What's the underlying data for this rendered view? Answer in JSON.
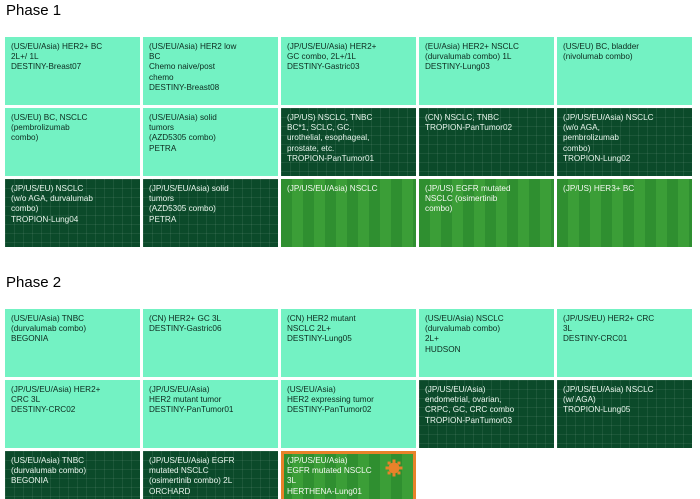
{
  "phase1": {
    "title": "Phase 1",
    "cells": [
      {
        "text": "(US/EU/Asia) HER2+ BC\n2L+/ 1L\nDESTINY-Breast07",
        "style": "light"
      },
      {
        "text": "(US/EU/Asia) HER2 low\nBC\nChemo naive/post\nchemo\nDESTINY-Breast08",
        "style": "light"
      },
      {
        "text": "(JP/US/EU/Asia) HER2+\nGC combo, 2L+/1L\nDESTINY-Gastric03",
        "style": "light"
      },
      {
        "text": "(EU/Asia) HER2+ NSCLC\n(durvalumab combo) 1L\nDESTINY-Lung03",
        "style": "light"
      },
      {
        "text": "(US/EU) BC, bladder\n(nivolumab combo)",
        "style": "light"
      },
      {
        "text": "(US/EU) BC, NSCLC\n(pembrolizumab\ncombo)",
        "style": "light"
      },
      {
        "text": "(US/EU/Asia) solid\ntumors\n(AZD5305 combo)\nPETRA",
        "style": "light"
      },
      {
        "text": "(JP/US) NSCLC, TNBC\nBC*1, SCLC, GC,\nurothelial, esophageal,\nprostate, etc.\nTROPION-PanTumor01",
        "style": "dark"
      },
      {
        "text": "(CN) NSCLC, TNBC\nTROPION-PanTumor02",
        "style": "dark"
      },
      {
        "text": "(JP/US/EU/Asia) NSCLC\n(w/o AGA,\npembrolizumab\ncombo)\nTROPION-Lung02",
        "style": "dark"
      },
      {
        "text": "(JP/US/EU) NSCLC\n(w/o AGA, durvalumab\ncombo)\nTROPION-Lung04",
        "style": "dark"
      },
      {
        "text": "(JP/US/EU/Asia) solid\ntumors\n(AZD5305 combo)\nPETRA",
        "style": "dark"
      },
      {
        "text": "(JP/US/EU/Asia) NSCLC",
        "style": "stripe"
      },
      {
        "text": "(JP/US) EGFR mutated\nNSCLC (osimertinib\ncombo)",
        "style": "stripe"
      },
      {
        "text": "(JP/US) HER3+ BC",
        "style": "stripe"
      }
    ]
  },
  "phase2": {
    "title": "Phase 2",
    "cells": [
      {
        "text": "(US/EU/Asia) TNBC\n(durvalumab combo)\nBEGONIA",
        "style": "light"
      },
      {
        "text": "(CN) HER2+ GC 3L\nDESTINY-Gastric06",
        "style": "light"
      },
      {
        "text": "(CN) HER2 mutant\nNSCLC 2L+\nDESTINY-Lung05",
        "style": "light"
      },
      {
        "text": "(US/EU/Asia) NSCLC\n(durvalumab combo)\n2L+\nHUDSON",
        "style": "light"
      },
      {
        "text": "(JP/US/EU) HER2+ CRC\n3L\nDESTINY-CRC01",
        "style": "light"
      },
      {
        "text": "(JP/US/EU/Asia) HER2+\nCRC 3L\nDESTINY-CRC02",
        "style": "light"
      },
      {
        "text": "(JP/US/EU/Asia)\nHER2 mutant tumor\nDESTINY-PanTumor01",
        "style": "light"
      },
      {
        "text": "(US/EU/Asia)\nHER2 expressing tumor\nDESTINY-PanTumor02",
        "style": "light"
      },
      {
        "text": "(JP/US/EU/Asia)\nendometrial, ovarian,\nCRPC, GC, CRC combo\nTROPION-PanTumor03",
        "style": "dark"
      },
      {
        "text": "(JP/US/EU/Asia) NSCLC\n(w/ AGA)\nTROPION-Lung05",
        "style": "dark"
      },
      {
        "text": "(US/EU/Asia) TNBC\n(durvalumab combo)\nBEGONIA",
        "style": "dark"
      },
      {
        "text": "(JP/US/EU/Asia) EGFR\nmutated NSCLC\n(osimertinib combo) 2L\nORCHARD",
        "style": "dark"
      },
      {
        "text": "(JP/US/EU/Asia)\nEGFR mutated NSCLC\n3L\nHERTHENA-Lung01",
        "style": "stripe",
        "highlight": true,
        "icon": "breakthrough-badge-icon"
      }
    ]
  },
  "colors": {
    "light": "#73f2c3",
    "dark": "#0b4a2a",
    "stripe": "#2f8f30",
    "highlight_border": "#e8822a"
  }
}
